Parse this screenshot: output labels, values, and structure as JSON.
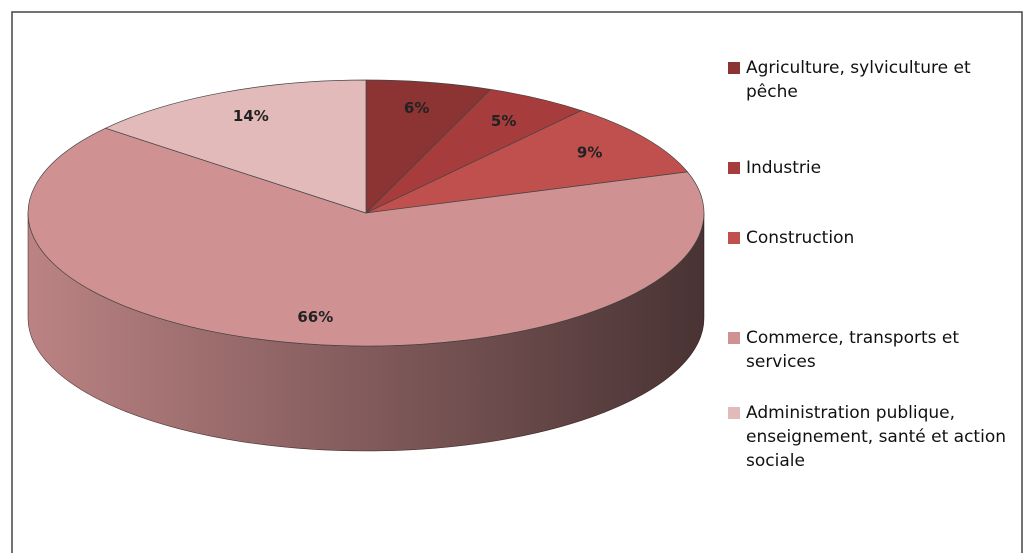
{
  "chart_data": {
    "type": "pie",
    "categories": [
      "Agriculture, sylviculture et pêche",
      "Industrie",
      "Construction",
      "Commerce, transports  et services",
      "Administration publique, enseignement, santé et action sociale"
    ],
    "values": [
      6,
      5,
      9,
      66,
      14
    ],
    "value_labels": [
      "6%",
      "5%",
      "9%",
      "66%",
      "14%"
    ],
    "colors": [
      "#8c3333",
      "#a63c3c",
      "#c0504d",
      "#d09192",
      "#e2baba"
    ],
    "legend": "right"
  }
}
